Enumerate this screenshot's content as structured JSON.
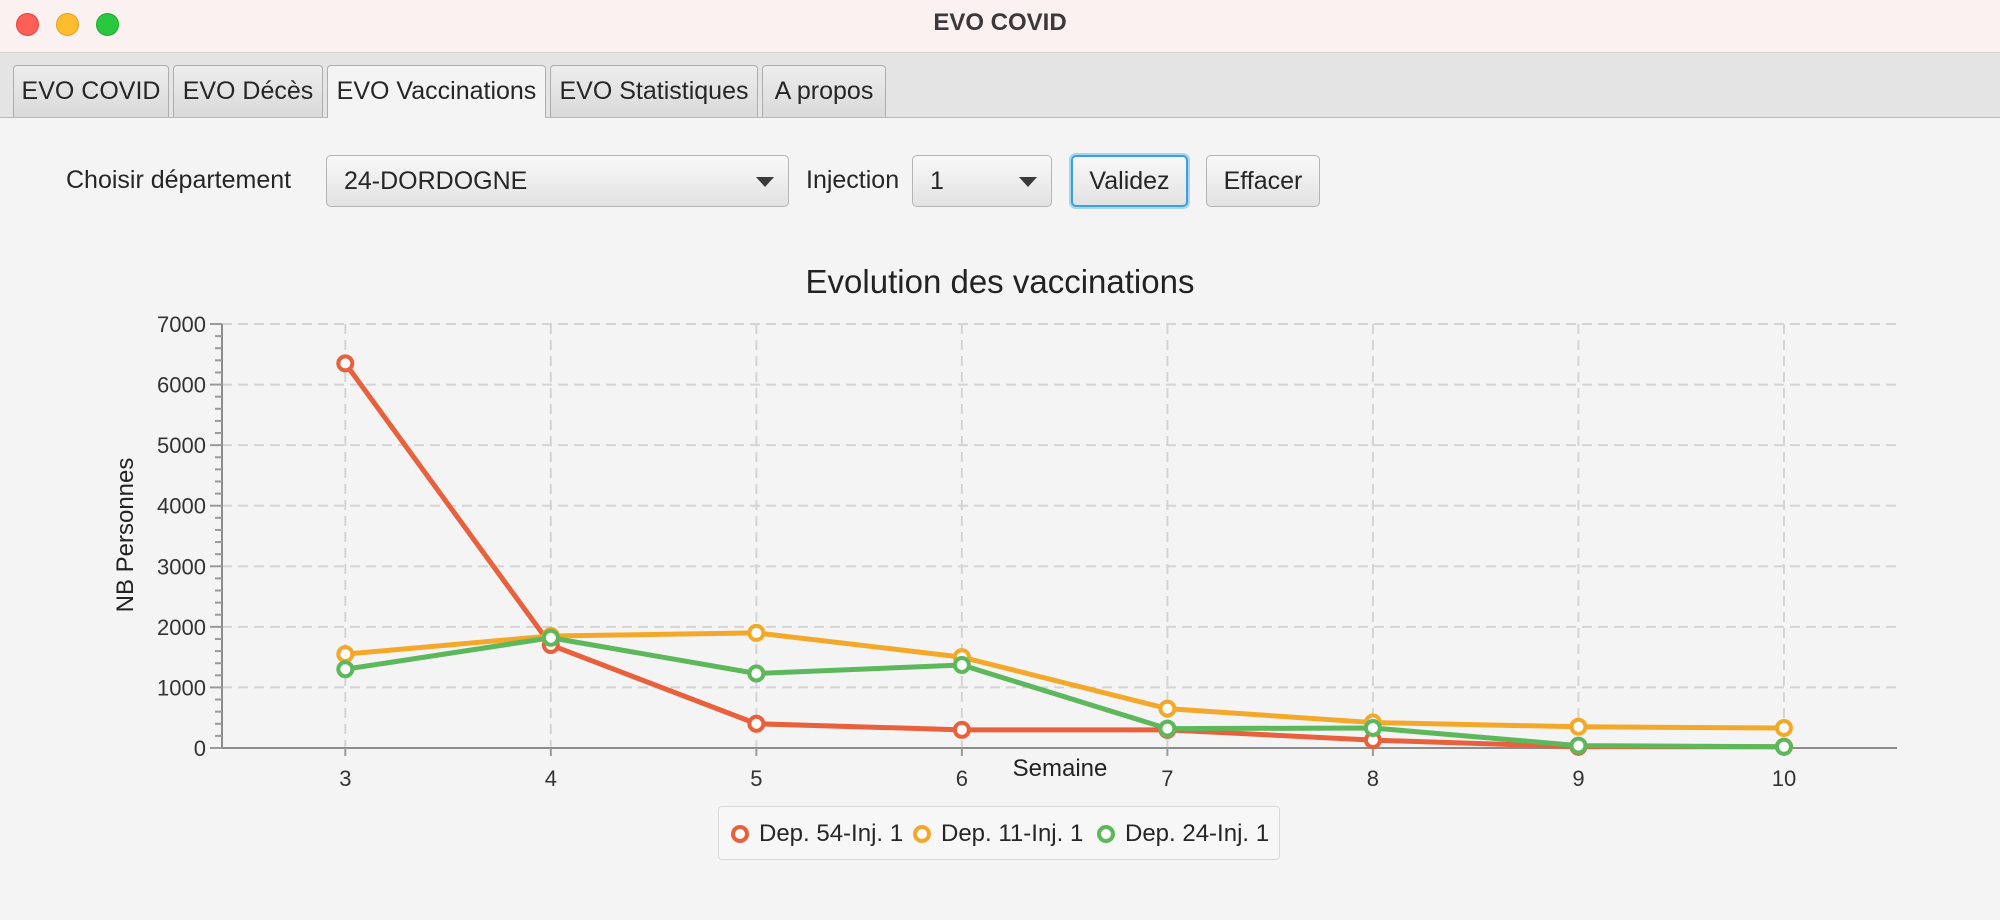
{
  "window": {
    "title": "EVO COVID"
  },
  "tabs": [
    {
      "label": "EVO COVID"
    },
    {
      "label": "EVO Décès"
    },
    {
      "label": "EVO Vaccinations"
    },
    {
      "label": "EVO Statistiques"
    },
    {
      "label": "A propos"
    }
  ],
  "active_tab": "EVO Vaccinations",
  "form": {
    "departement_label": "Choisir département",
    "departement_value": "24-DORDOGNE",
    "injection_label": "Injection",
    "injection_value": "1",
    "validate_label": "Validez",
    "clear_label": "Effacer"
  },
  "colors": {
    "accent_focus": "#3d9fe0",
    "series": [
      "#e8603c",
      "#f4a82a",
      "#5db85c"
    ]
  },
  "icons": {
    "combo_arrow": "chevron-down-icon"
  },
  "chart_data": {
    "type": "line",
    "title": "Evolution des vaccinations",
    "xlabel": "Semaine",
    "ylabel": "NB Personnes",
    "x": [
      3,
      4,
      5,
      6,
      7,
      8,
      9,
      10
    ],
    "xlim": [
      2.4,
      10.55
    ],
    "ylim": [
      0,
      7000
    ],
    "yticks": [
      0,
      1000,
      2000,
      3000,
      4000,
      5000,
      6000,
      7000
    ],
    "ytick_labels": [
      "0",
      "1000",
      "2000",
      "3000",
      "4000",
      "5000",
      "6000",
      "7000"
    ],
    "xticks": [
      3,
      4,
      5,
      6,
      7,
      8,
      9,
      10
    ],
    "grid": true,
    "legend_position": "bottom-center",
    "series": [
      {
        "name": "Dep. 54-Inj. 1",
        "color": "#e8603c",
        "values": [
          6350,
          1700,
          400,
          300,
          300,
          130,
          20,
          20
        ]
      },
      {
        "name": "Dep. 11-Inj. 1",
        "color": "#f4a82a",
        "values": [
          1550,
          1850,
          1900,
          1500,
          650,
          420,
          350,
          330
        ]
      },
      {
        "name": "Dep. 24-Inj. 1",
        "color": "#5db85c",
        "values": [
          1300,
          1820,
          1230,
          1370,
          320,
          330,
          40,
          20
        ]
      }
    ]
  }
}
